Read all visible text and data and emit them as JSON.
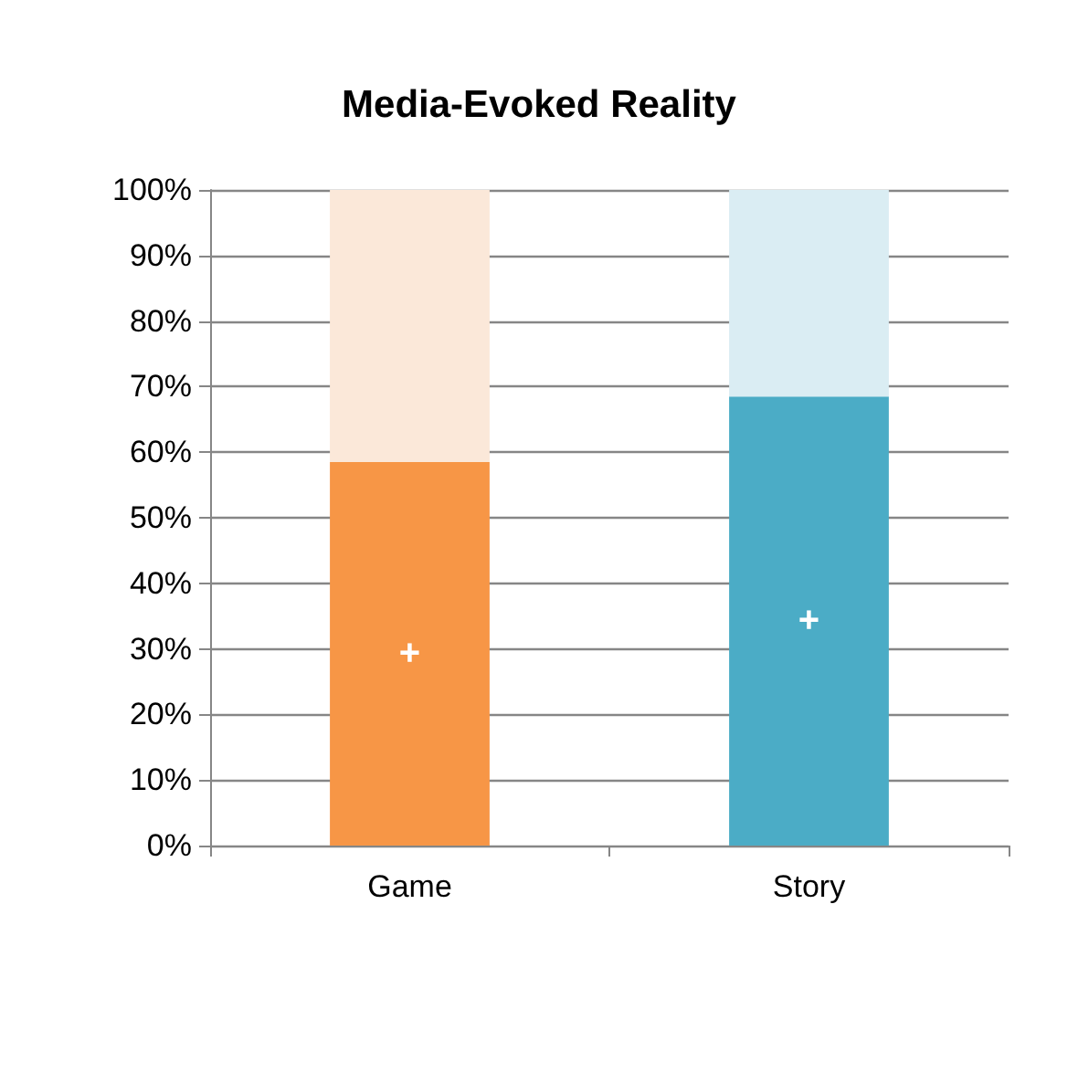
{
  "chart_data": {
    "type": "bar",
    "title": "Media-Evoked Reality",
    "categories": [
      "Game",
      "Story"
    ],
    "stacked": true,
    "series": [
      {
        "colors": [
          "#f79646",
          "#4bacc6"
        ],
        "values": [
          58.5,
          68.5
        ]
      },
      {
        "colors": [
          "#fbe8d9",
          "#daedf3"
        ],
        "values": [
          41.5,
          31.5
        ]
      }
    ],
    "ylim": [
      0,
      100
    ],
    "yticks": [
      {
        "value": 0,
        "label": "0%"
      },
      {
        "value": 10,
        "label": "10%"
      },
      {
        "value": 20,
        "label": "20%"
      },
      {
        "value": 30,
        "label": "30%"
      },
      {
        "value": 40,
        "label": "40%"
      },
      {
        "value": 50,
        "label": "50%"
      },
      {
        "value": 60,
        "label": "60%"
      },
      {
        "value": 70,
        "label": "70%"
      },
      {
        "value": 80,
        "label": "80%"
      },
      {
        "value": 90,
        "label": "90%"
      },
      {
        "value": 100,
        "label": "100%"
      }
    ],
    "grid": "y",
    "annotations": [
      "+",
      "+"
    ]
  }
}
